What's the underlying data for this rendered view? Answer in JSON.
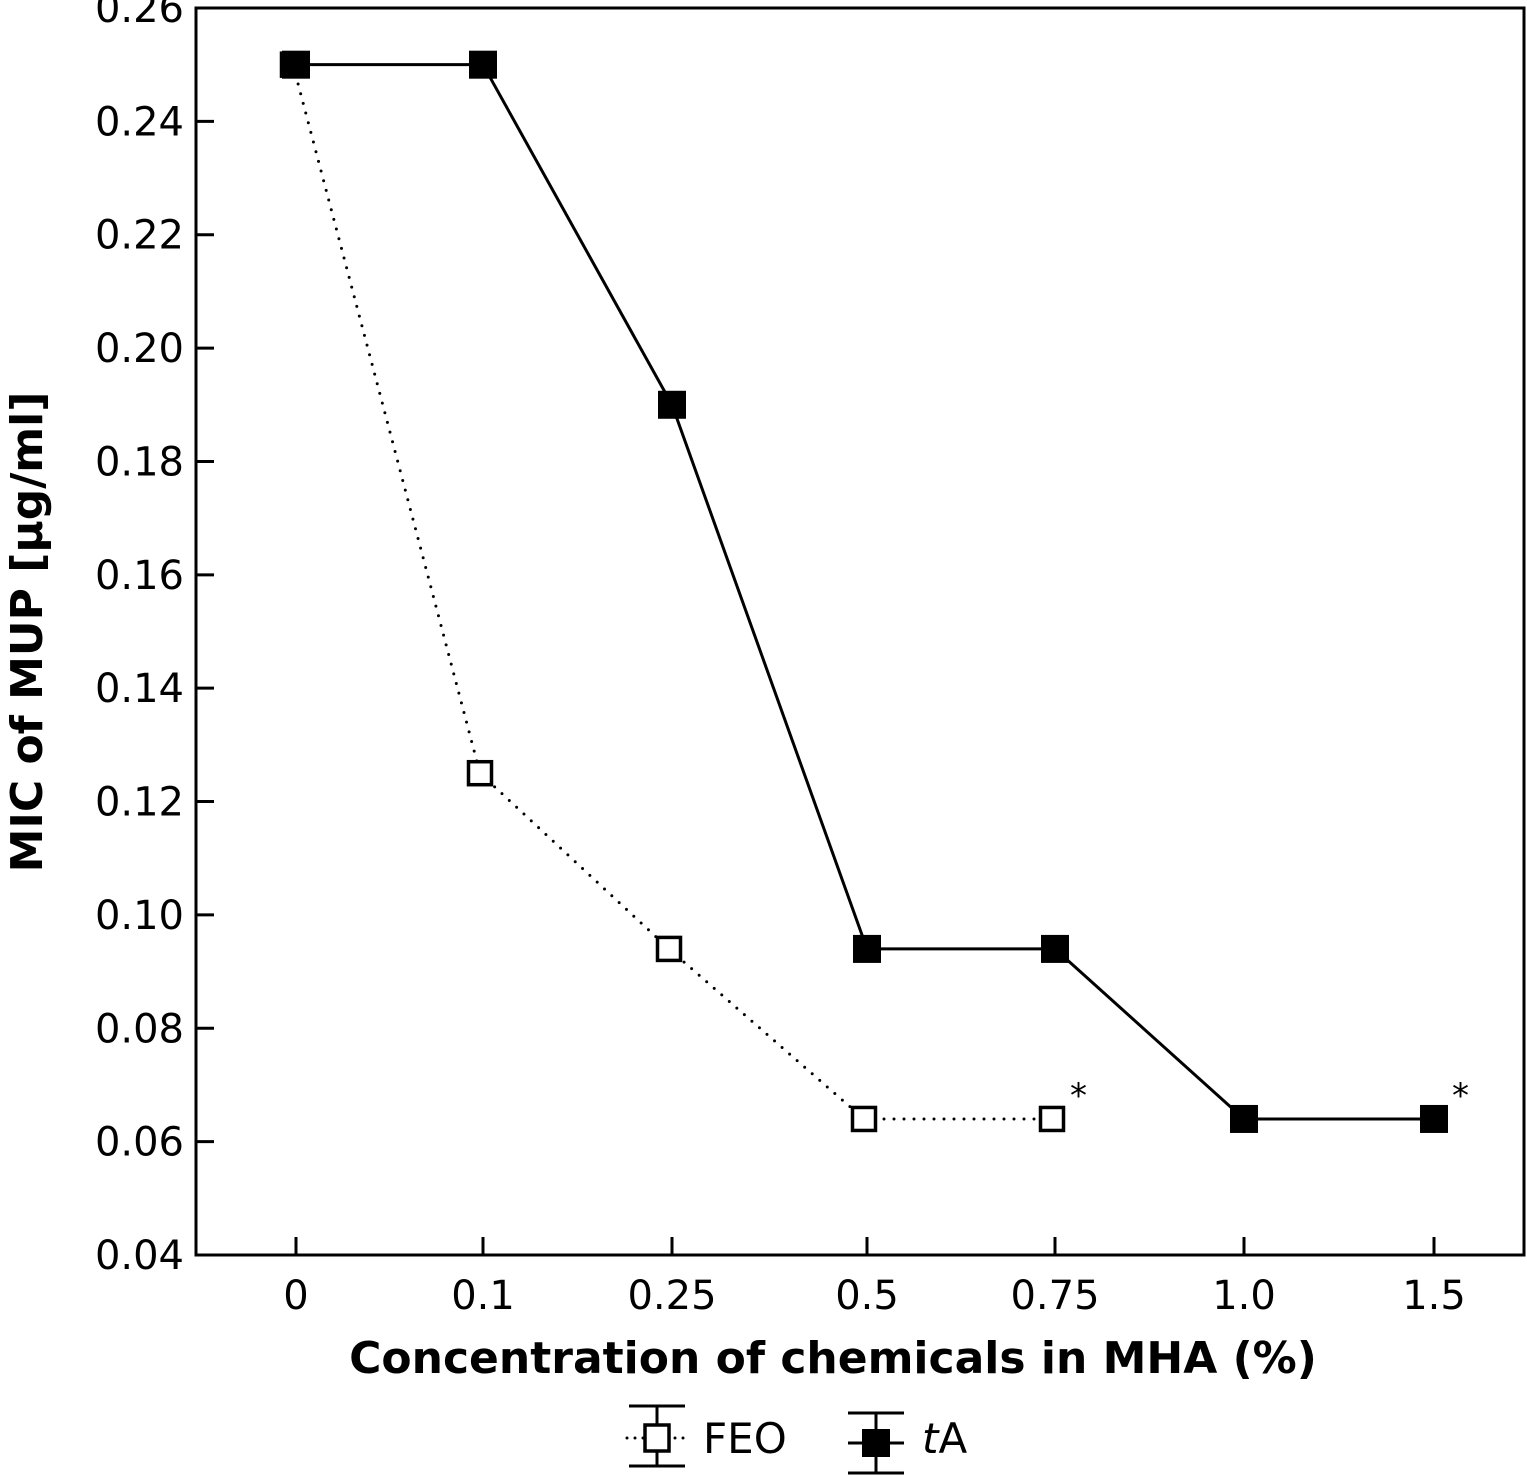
{
  "chart_data": {
    "type": "line",
    "title": "",
    "xlabel": "Concentration of chemicals in MHA (%)",
    "ylabel": "MIC of MUP [µg/ml]",
    "x_scale": "categorical",
    "categories": [
      "0",
      "0.1",
      "0.25",
      "0.5",
      "0.75",
      "1.0",
      "1.5"
    ],
    "ylim": [
      0.04,
      0.26
    ],
    "yticks": [
      "0.04",
      "0.06",
      "0.08",
      "0.10",
      "0.12",
      "0.14",
      "0.16",
      "0.18",
      "0.20",
      "0.22",
      "0.24",
      "0.26"
    ],
    "grid": false,
    "legend_position": "bottom-center",
    "series": [
      {
        "name": "FEO",
        "line_style": "dotted",
        "marker": "open-square",
        "color": "#000000",
        "values": [
          0.25,
          0.125,
          0.094,
          0.064,
          0.064,
          null,
          null
        ],
        "annotations": [
          {
            "category": "0.75",
            "text": "*"
          }
        ]
      },
      {
        "name": "tA",
        "name_italic_part": "t",
        "name_rest": "A",
        "line_style": "solid",
        "marker": "filled-square",
        "color": "#000000",
        "values": [
          0.25,
          0.25,
          0.19,
          0.094,
          0.094,
          0.064,
          0.064
        ],
        "annotations": [
          {
            "category": "1.5",
            "text": "*"
          }
        ]
      }
    ]
  }
}
